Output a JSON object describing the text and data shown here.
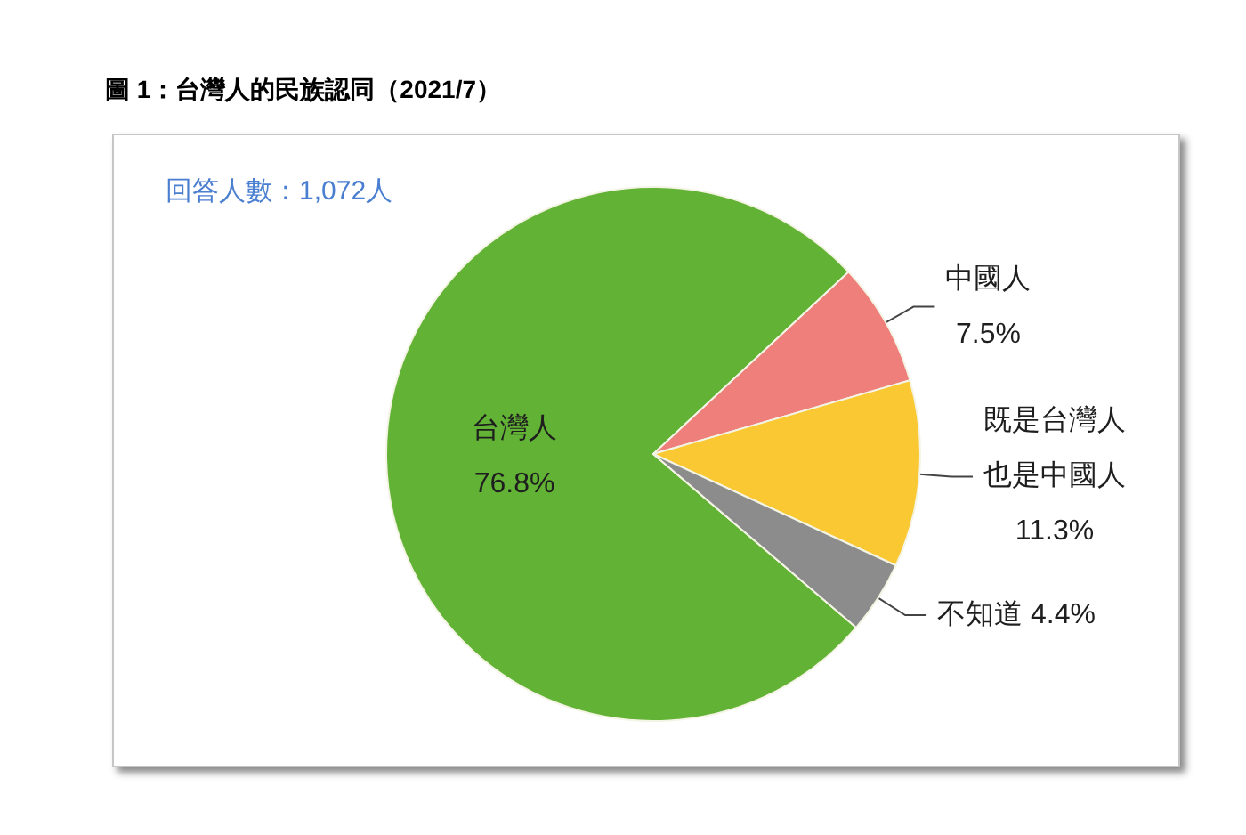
{
  "chart_data": {
    "type": "pie",
    "title": "圖 1：台灣人的民族認同（2021/7）",
    "annotations": [
      "回答人數：1,072人"
    ],
    "categories": [
      "台灣人",
      "中國人",
      "既是台灣人也是中國人",
      "不知道"
    ],
    "values": [
      76.8,
      7.5,
      11.3,
      4.4
    ],
    "colors": [
      "#62b236",
      "#ee7f7b",
      "#f9c832",
      "#8c8c8c"
    ],
    "value_labels": [
      "76.8%",
      "7.5%",
      "11.3%",
      "4.4%"
    ]
  }
}
